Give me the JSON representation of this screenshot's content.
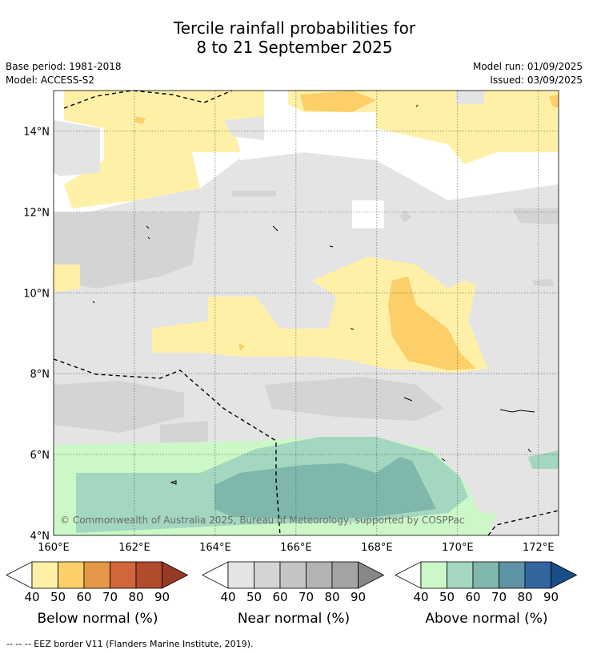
{
  "header": {
    "title_line1": "Tercile rainfall probabilities for",
    "title_line2": "8 to 21 September 2025",
    "base_period": "Base period: 1981-2018",
    "model": "Model: ACCESS-S2",
    "model_run": "Model run: 01/09/2025",
    "issued": "Issued: 03/09/2025"
  },
  "map": {
    "lon_range": [
      160,
      172.5
    ],
    "lat_range": [
      4,
      15
    ],
    "lon_ticks": [
      "160°E",
      "162°E",
      "164°E",
      "166°E",
      "168°E",
      "170°E",
      "172°E"
    ],
    "lat_ticks": [
      "4°N",
      "6°N",
      "8°N",
      "10°N",
      "12°N",
      "14°N"
    ],
    "gridlines": true,
    "copyright": "© Commonwealth of Australia 2025, Bureau of Meteorology, supported by COSPPac"
  },
  "legend": {
    "below": {
      "title": "Below normal (%)",
      "labels": [
        "40",
        "50",
        "60",
        "70",
        "80",
        "90"
      ],
      "colors": [
        "#fff0a8",
        "#fdcf68",
        "#e59849",
        "#d0663a",
        "#b14b2c",
        "#963a25"
      ]
    },
    "near": {
      "title": "Near normal (%)",
      "labels": [
        "40",
        "50",
        "60",
        "70",
        "80",
        "90"
      ],
      "colors": [
        "#e4e4e4",
        "#d4d4d4",
        "#c4c4c4",
        "#b3b3b3",
        "#a3a3a3",
        "#878787"
      ]
    },
    "above": {
      "title": "Above normal (%)",
      "labels": [
        "40",
        "50",
        "60",
        "70",
        "80",
        "90"
      ],
      "colors": [
        "#ccf8c8",
        "#a3d7bf",
        "#7fb7ac",
        "#5d93a5",
        "#33669f",
        "#1a4d8a"
      ]
    }
  },
  "footnote": "--  --  -- EEZ border V11 (Flanders Marine Institute, 2019)."
}
